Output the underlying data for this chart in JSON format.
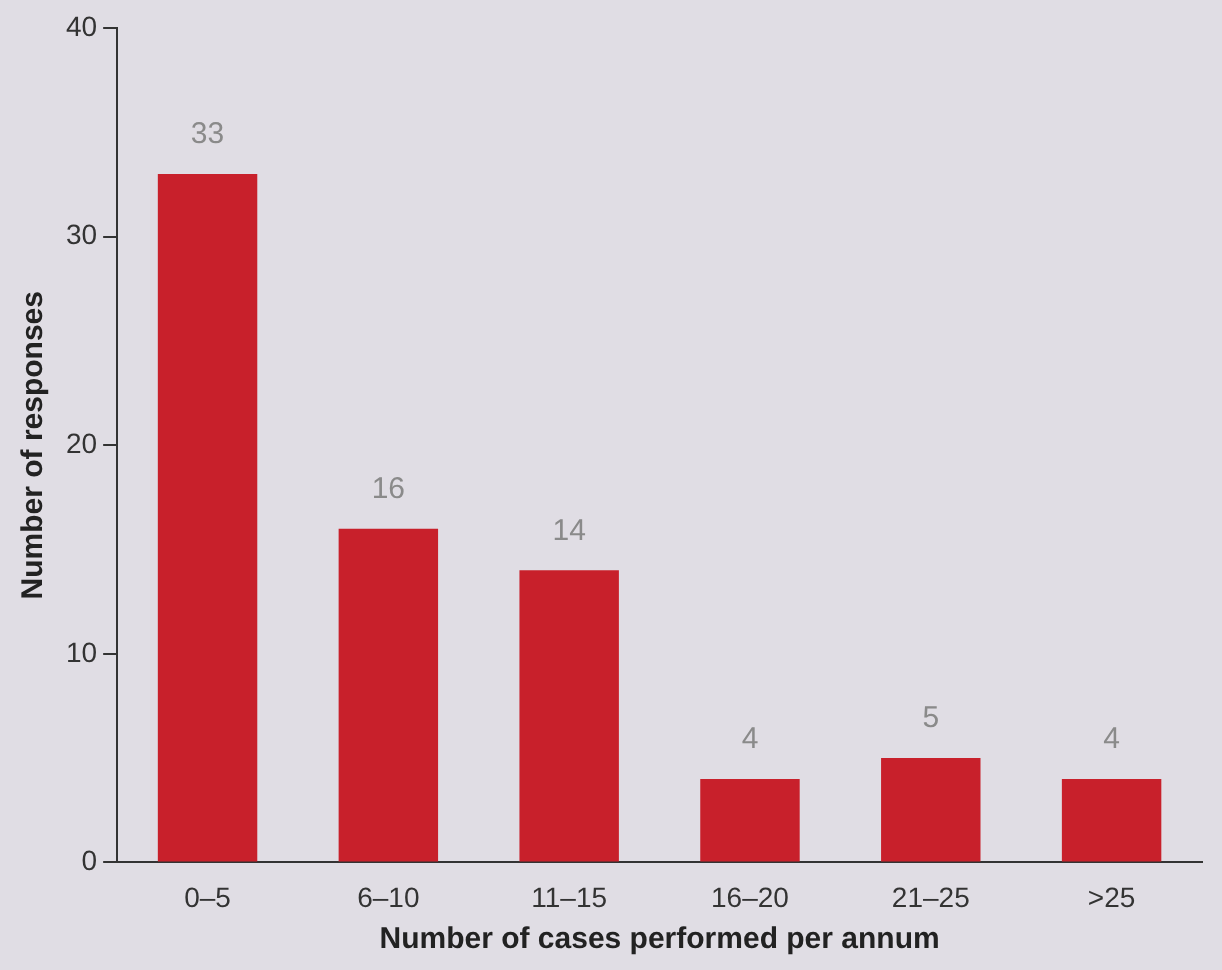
{
  "chart_data": {
    "type": "bar",
    "xlabel": "Number of cases performed per annum",
    "ylabel": "Number of responses",
    "categories": [
      "0–5",
      "6–10",
      "11–15",
      "16–20",
      "21–25",
      ">25"
    ],
    "values": [
      33,
      16,
      14,
      4,
      5,
      4
    ],
    "color": "#c8202b",
    "ylim": [
      0,
      40
    ],
    "yticks": [
      0,
      10,
      20,
      30,
      40
    ],
    "grid": false,
    "legend": false,
    "data_labels": true
  }
}
